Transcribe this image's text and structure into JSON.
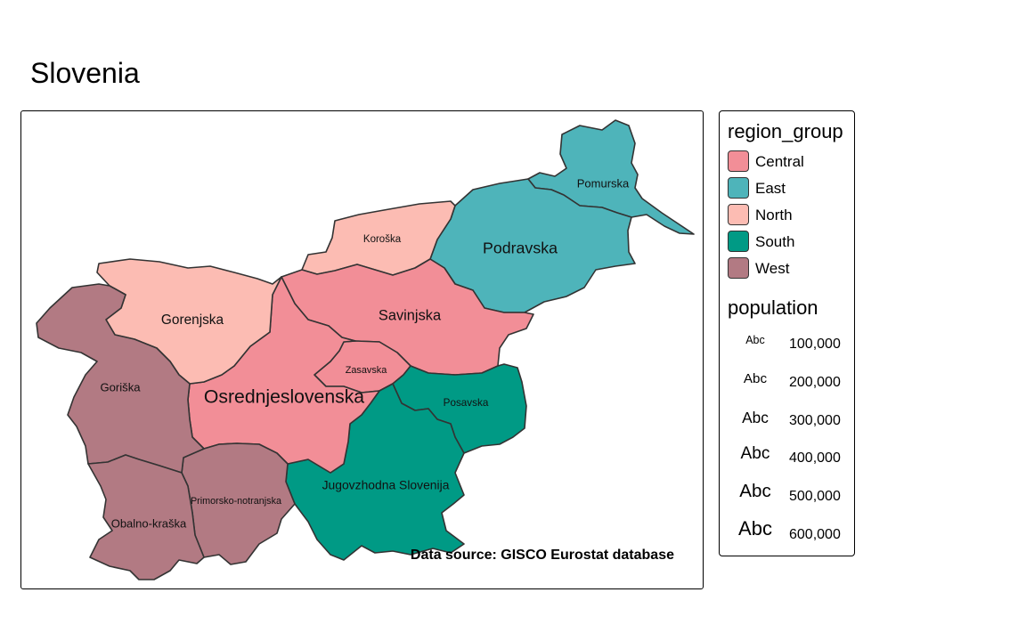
{
  "title": "Slovenia",
  "source": "Data source: GISCO Eurostat database",
  "colors": {
    "Central": "#F28E97",
    "East": "#4EB4BA",
    "North": "#FCBCB3",
    "South": "#009A85",
    "West": "#B27A83"
  },
  "regions": [
    {
      "name": "Pomurska",
      "group": "East",
      "population": 115000
    },
    {
      "name": "Podravska",
      "group": "East",
      "population": 325000
    },
    {
      "name": "Koroška",
      "group": "North",
      "population": 71000
    },
    {
      "name": "Savinjska",
      "group": "Central",
      "population": 255000
    },
    {
      "name": "Zasavska",
      "group": "Central",
      "population": 57000
    },
    {
      "name": "Posavska",
      "group": "South",
      "population": 75000
    },
    {
      "name": "Jugovzhodna Slovenija",
      "group": "South",
      "population": 145000
    },
    {
      "name": "Osrednjeslovenska",
      "group": "Central",
      "population": 540000
    },
    {
      "name": "Gorenjska",
      "group": "North",
      "population": 205000
    },
    {
      "name": "Primorsko-notranjska",
      "group": "West",
      "population": 53000
    },
    {
      "name": "Goriška",
      "group": "West",
      "population": 118000
    },
    {
      "name": "Obalno-kraška",
      "group": "West",
      "population": 115000
    }
  ],
  "legend": {
    "fill_title": "region_group",
    "groups": [
      "Central",
      "East",
      "North",
      "South",
      "West"
    ],
    "size_title": "population",
    "size_sample": "Abc",
    "sizes": [
      {
        "value": 100000,
        "label": "100,000"
      },
      {
        "value": 200000,
        "label": "200,000"
      },
      {
        "value": 300000,
        "label": "300,000"
      },
      {
        "value": 400000,
        "label": "400,000"
      },
      {
        "value": 500000,
        "label": "500,000"
      },
      {
        "value": 600000,
        "label": "600,000"
      }
    ]
  }
}
